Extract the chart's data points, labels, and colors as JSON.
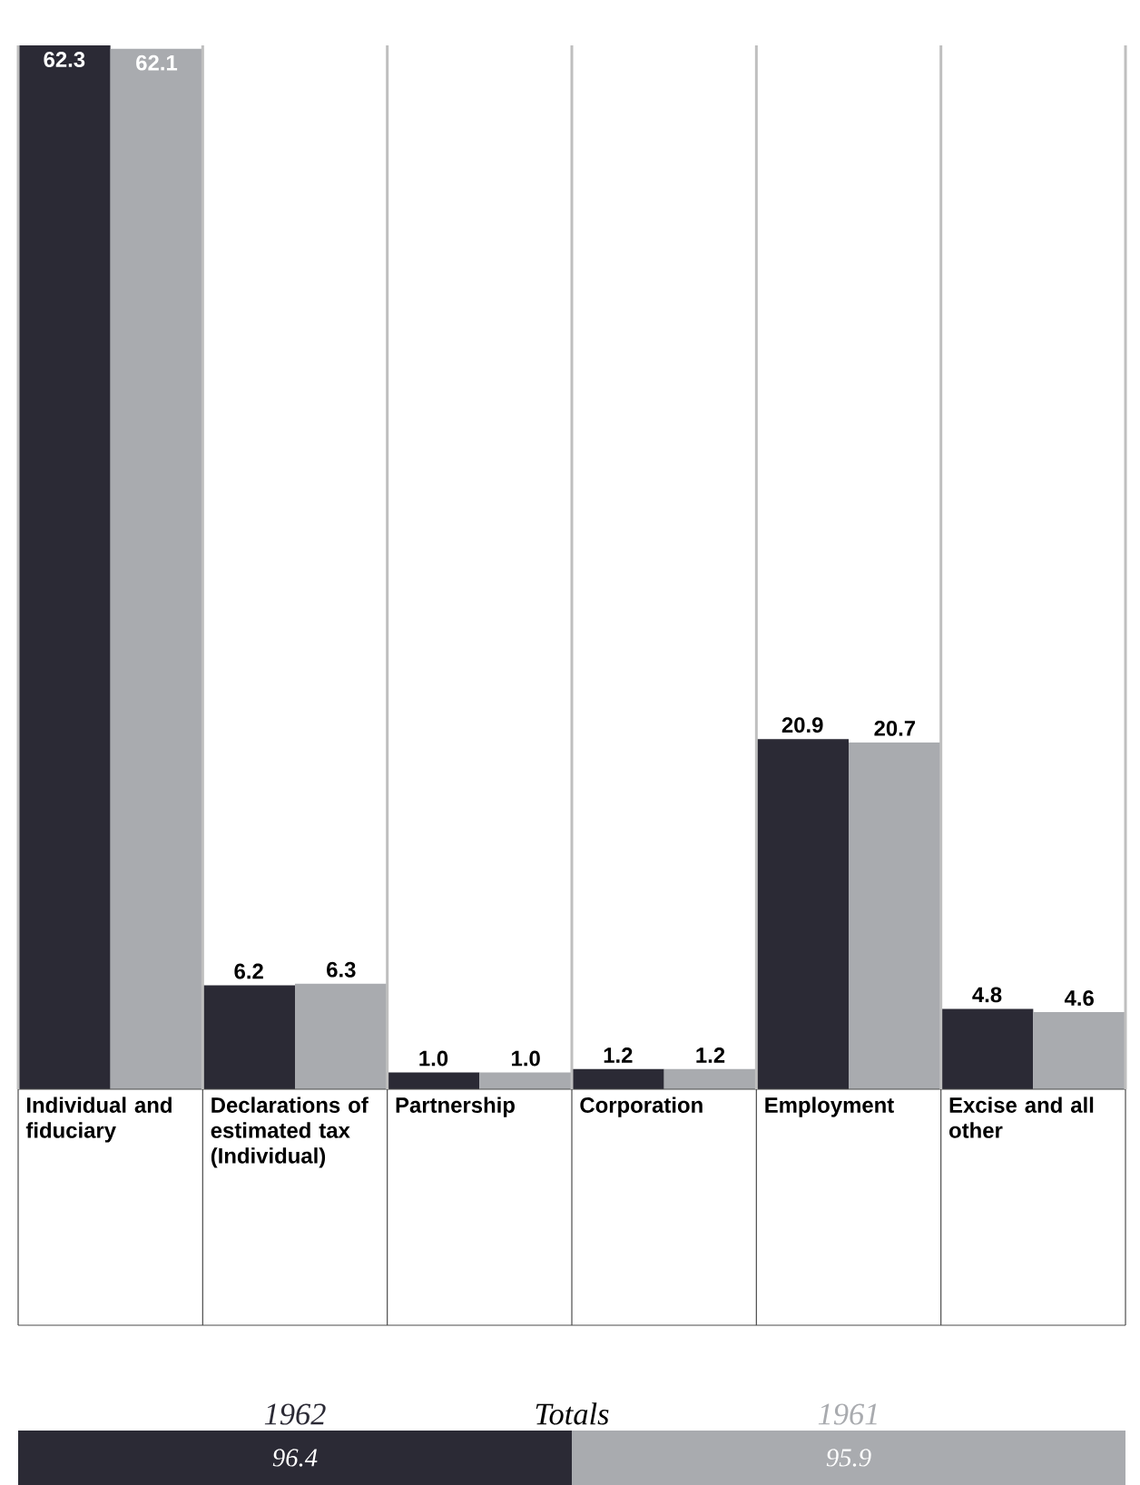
{
  "chart_data": {
    "type": "bar",
    "categories": [
      "Individual and fiduciary",
      "Declarations of estimated tax (Individual)",
      "Partnership",
      "Corporation",
      "Employment",
      "Excise and all other"
    ],
    "series": [
      {
        "name": "1962",
        "color": "#2b2a35",
        "values": [
          62.3,
          6.2,
          1.0,
          1.2,
          20.9,
          4.8
        ],
        "value_labels": [
          "62.3",
          "6.2",
          "1.0",
          "1.2",
          "20.9",
          "4.8"
        ]
      },
      {
        "name": "1961",
        "color": "#a9abaf",
        "values": [
          62.1,
          6.3,
          1.0,
          1.2,
          20.7,
          4.6
        ],
        "value_labels": [
          "62.1",
          "6.3",
          "1.0",
          "1.2",
          "20.7",
          "4.6"
        ]
      }
    ],
    "legend": "bottom",
    "annotations": [
      "Totals",
      "96.4",
      "95.9"
    ]
  }
}
